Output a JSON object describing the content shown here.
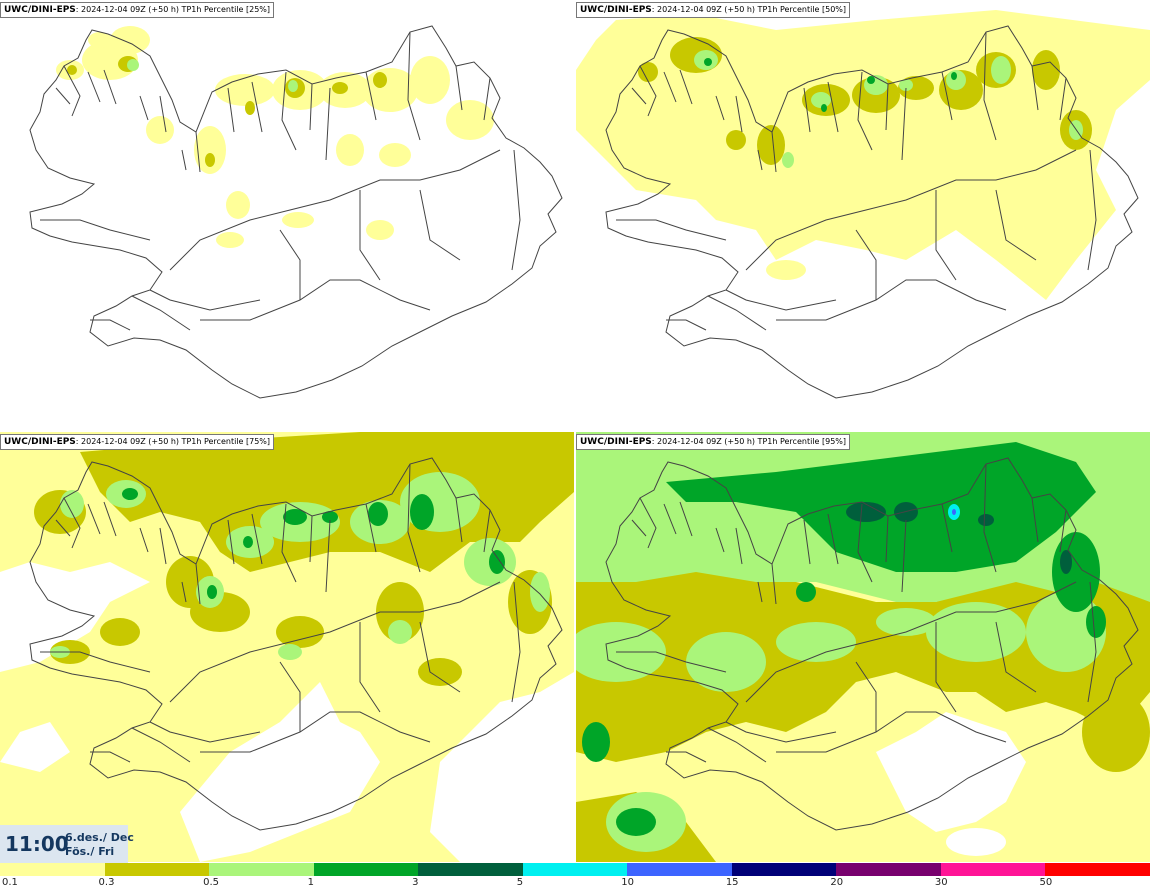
{
  "panels": [
    {
      "id": "p25",
      "model": "UWC/DINI-EPS",
      "run": ": 2024-12-04 09Z (+50 h)",
      "field": " TP1h Percentile [25%]"
    },
    {
      "id": "p50",
      "model": "UWC/DINI-EPS",
      "run": ": 2024-12-04 09Z (+50 h)",
      "field": " TP1h Percentile [50%]"
    },
    {
      "id": "p75",
      "model": "UWC/DINI-EPS",
      "run": ": 2024-12-04 09Z (+50 h)",
      "field": " TP1h Percentile [75%]"
    },
    {
      "id": "p95",
      "model": "UWC/DINI-EPS",
      "run": ": 2024-12-04 09Z (+50 h)",
      "field": " TP1h Percentile [95%]"
    }
  ],
  "valid": {
    "time": "11:00",
    "date_line1": "6.des./ Dec",
    "date_line2": "Fös./ Fri"
  },
  "legend": {
    "ticks": [
      "0.1",
      "0.3",
      "0.5",
      "1",
      "3",
      "5",
      "10",
      "15",
      "20",
      "30",
      "50"
    ],
    "colors": [
      "#ffff99",
      "#c8c800",
      "#aaf57a",
      "#00a528",
      "#005f3c",
      "#00f0f0",
      "#3c64ff",
      "#000078",
      "#78006e",
      "#ff1496",
      "#ff0000"
    ]
  },
  "colors": {
    "label_text": "#14375f",
    "label_bg": "#dce6f0",
    "coast": "#444444"
  }
}
